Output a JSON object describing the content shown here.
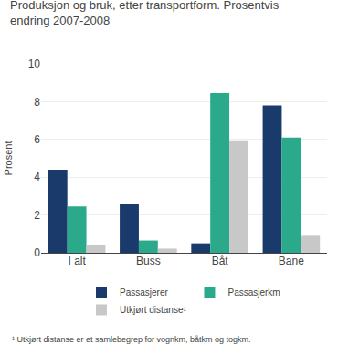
{
  "chart_data": {
    "type": "bar",
    "title": "Produksjon og bruk, etter transportform. Prosentvis\nendring 2007-2008",
    "ylabel": "Prosent",
    "annotations": [
      "¹ Utkjørt distanse er et samlebegrep for vognkm, båtkm og togkm."
    ],
    "categories": [
      "I alt",
      "Buss",
      "Båt",
      "Bane"
    ],
    "series": [
      {
        "name": "Passasjerer",
        "color": "#1a3a6b",
        "values": [
          4.4,
          2.6,
          0.5,
          7.8
        ]
      },
      {
        "name": "Passasjerkm",
        "color": "#2aaa8a",
        "values": [
          2.45,
          0.65,
          8.45,
          6.1
        ]
      },
      {
        "name": "Utkjørt distanse¹",
        "color": "#c8c8c8",
        "values": [
          0.4,
          0.22,
          5.95,
          0.9
        ]
      }
    ],
    "ylim": [
      0,
      10
    ],
    "yticks": [
      0,
      2,
      4,
      6,
      8,
      10
    ],
    "grid": true,
    "legend": "bottom"
  }
}
